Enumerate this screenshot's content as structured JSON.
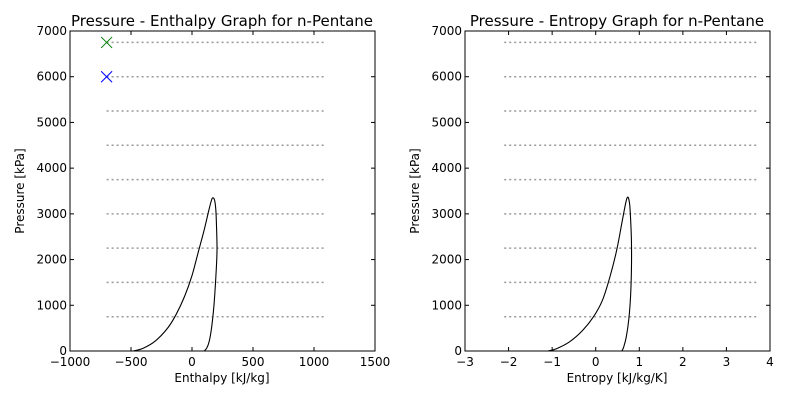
{
  "chart_data": [
    {
      "type": "line",
      "title": "Pressure - Enthalpy Graph for n-Pentane",
      "xlabel": "Enthalpy [kJ/kg]",
      "ylabel": "Pressure [kPa]",
      "xlim": [
        -1000,
        1500
      ],
      "ylim": [
        0,
        7000
      ],
      "xticks": [
        -1000,
        -500,
        0,
        500,
        1000,
        1500
      ],
      "xtick_labels": [
        "−1000",
        "−500",
        "0",
        "500",
        "1000",
        "1500"
      ],
      "yticks": [
        0,
        1000,
        2000,
        3000,
        4000,
        5000,
        6000,
        7000
      ],
      "ytick_labels": [
        "0",
        "1000",
        "2000",
        "3000",
        "4000",
        "5000",
        "6000",
        "7000"
      ],
      "grid": false,
      "colors": {
        "dome": "#000000",
        "isobars": "#999999",
        "marker_green": "#008000",
        "marker_blue": "#0000ff"
      },
      "series": [
        {
          "kind": "saturation-dome",
          "x": [
            -480,
            -400,
            -300,
            -200,
            -130,
            -60,
            0,
            50,
            100,
            140,
            160,
            170,
            185,
            195,
            200,
            205,
            195,
            180,
            160,
            140,
            120,
            100
          ],
          "y": [
            0,
            60,
            220,
            500,
            800,
            1200,
            1650,
            2150,
            2650,
            3100,
            3300,
            3350,
            3300,
            3100,
            2800,
            2200,
            1600,
            1000,
            500,
            200,
            60,
            0
          ]
        },
        {
          "kind": "isobars",
          "x_range": [
            -700,
            1100
          ],
          "levels": [
            750,
            1500,
            2250,
            3000,
            3750,
            4500,
            5250,
            6000,
            6750
          ]
        },
        {
          "kind": "marker",
          "symbol": "x",
          "color": "green",
          "x": -700,
          "y": 6750
        },
        {
          "kind": "marker",
          "symbol": "x",
          "color": "blue",
          "x": -700,
          "y": 6000
        }
      ]
    },
    {
      "type": "line",
      "title": "Pressure - Entropy Graph for n-Pentane",
      "xlabel": "Entropy [kJ/kg/K]",
      "ylabel": "Pressure [kPa]",
      "xlim": [
        -3,
        4
      ],
      "ylim": [
        0,
        7000
      ],
      "xticks": [
        -3,
        -2,
        -1,
        0,
        1,
        2,
        3,
        4
      ],
      "xtick_labels": [
        "−3",
        "−2",
        "−1",
        "0",
        "1",
        "2",
        "3",
        "4"
      ],
      "yticks": [
        0,
        1000,
        2000,
        3000,
        4000,
        5000,
        6000,
        7000
      ],
      "ytick_labels": [
        "0",
        "1000",
        "2000",
        "3000",
        "4000",
        "5000",
        "6000",
        "7000"
      ],
      "grid": false,
      "colors": {
        "dome": "#000000",
        "isobars": "#999999"
      },
      "series": [
        {
          "kind": "saturation-dome",
          "x": [
            -1.1,
            -0.9,
            -0.6,
            -0.3,
            -0.05,
            0.15,
            0.32,
            0.48,
            0.6,
            0.68,
            0.72,
            0.75,
            0.78,
            0.8,
            0.82,
            0.82,
            0.8,
            0.76,
            0.7,
            0.64,
            0.6
          ],
          "y": [
            0,
            50,
            200,
            450,
            750,
            1100,
            1600,
            2200,
            2800,
            3200,
            3350,
            3350,
            3200,
            2900,
            2400,
            1800,
            1200,
            700,
            300,
            80,
            0
          ]
        },
        {
          "kind": "isobars",
          "x_range": [
            -2.1,
            3.7
          ],
          "levels": [
            750,
            1500,
            2250,
            3000,
            3750,
            4500,
            5250,
            6000,
            6750
          ]
        }
      ]
    }
  ]
}
